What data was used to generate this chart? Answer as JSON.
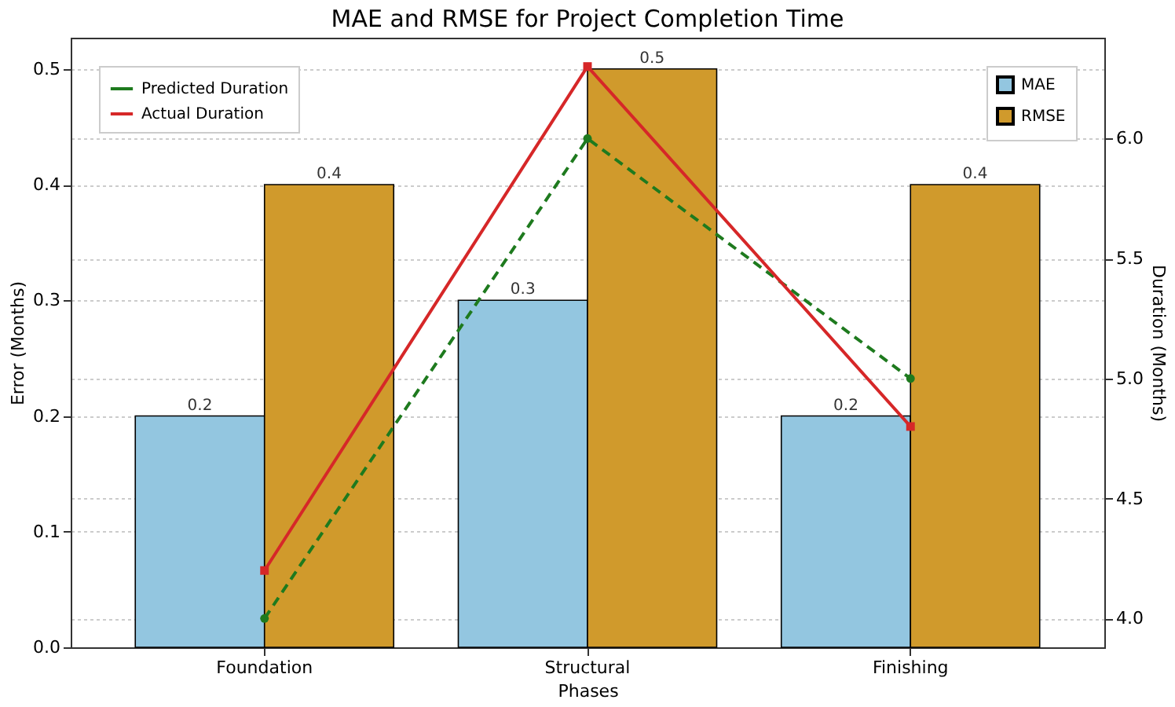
{
  "chart_data": {
    "type": "bar",
    "title": "MAE and RMSE for Project Completion Time",
    "xlabel": "Phases",
    "ylabel": "Error (Months)",
    "y2label": "Duration (Months)",
    "categories": [
      "Foundation",
      "Structural",
      "Finishing"
    ],
    "series": [
      {
        "name": "MAE",
        "color": "#93c6e0",
        "values": [
          0.2,
          0.3,
          0.2
        ],
        "value_labels": [
          "0.2",
          "0.3",
          "0.2"
        ]
      },
      {
        "name": "RMSE",
        "color": "#d09a2c",
        "values": [
          0.4,
          0.5,
          0.4
        ],
        "value_labels": [
          "0.4",
          "0.5",
          "0.4"
        ]
      },
      {
        "name": "Predicted Duration",
        "type": "line",
        "axis": "y2",
        "color": "#1e7a1e",
        "line_style": "dashed",
        "marker": "circle",
        "values": [
          4.0,
          6.0,
          5.0
        ]
      },
      {
        "name": "Actual Duration",
        "type": "line",
        "axis": "y2",
        "color": "#d62728",
        "line_style": "solid",
        "marker": "square",
        "values": [
          4.2,
          6.3,
          4.8
        ]
      }
    ],
    "ylim": [
      0,
      0.527
    ],
    "yticks": [
      {
        "value": 0,
        "label": "0.0"
      },
      0.1,
      0.2,
      0.3,
      0.4,
      0.5
    ],
    "y2lim": [
      3.88,
      6.42
    ],
    "y2ticks": [
      {
        "value": 4,
        "label": "4.0"
      },
      4.5,
      {
        "value": 5,
        "label": "5.0"
      },
      5.5,
      {
        "value": 6,
        "label": "6.0"
      }
    ],
    "grid": true,
    "legend": "top left"
  }
}
